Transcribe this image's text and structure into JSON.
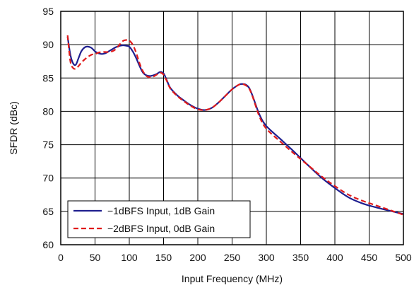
{
  "chart_data": {
    "type": "line",
    "title": "",
    "xlabel": "Input Frequency (MHz)",
    "ylabel": "SFDR (dBc)",
    "xlim": [
      0,
      500
    ],
    "ylim": [
      60,
      95
    ],
    "xticks": [
      0,
      50,
      100,
      150,
      200,
      250,
      300,
      350,
      400,
      450,
      500
    ],
    "yticks": [
      60,
      65,
      70,
      75,
      80,
      85,
      90,
      95
    ],
    "grid": true,
    "legend_position": "bottom-left",
    "series": [
      {
        "name": "−1dBFS Input, 1dB Gain",
        "color": "#1f1f8f",
        "style": "solid",
        "x": [
          10,
          14,
          18,
          22,
          26,
          30,
          35,
          40,
          45,
          50,
          55,
          60,
          65,
          70,
          75,
          80,
          85,
          90,
          95,
          100,
          105,
          110,
          115,
          120,
          125,
          130,
          135,
          140,
          145,
          150,
          155,
          160,
          170,
          180,
          190,
          200,
          210,
          220,
          230,
          240,
          250,
          260,
          265,
          270,
          275,
          280,
          290,
          300,
          320,
          340,
          360,
          380,
          400,
          420,
          440,
          460,
          480,
          500
        ],
        "y": [
          91.2,
          88.5,
          87.2,
          87.0,
          88.0,
          89.0,
          89.6,
          89.7,
          89.5,
          89.0,
          88.7,
          88.6,
          88.7,
          89.0,
          89.3,
          89.6,
          89.8,
          89.9,
          89.85,
          89.7,
          89.0,
          88.0,
          86.8,
          85.8,
          85.4,
          85.3,
          85.4,
          85.6,
          85.9,
          85.7,
          84.6,
          83.5,
          82.4,
          81.6,
          80.9,
          80.4,
          80.2,
          80.5,
          81.3,
          82.3,
          83.3,
          84.0,
          84.1,
          84.0,
          83.5,
          82.3,
          79.5,
          77.8,
          75.9,
          74.0,
          72.0,
          70.1,
          68.5,
          67.1,
          66.2,
          65.6,
          65.1,
          64.6
        ]
      },
      {
        "name": "−2dBFS Input, 0dB Gain",
        "color": "#e01a1a",
        "style": "dashed",
        "x": [
          10,
          14,
          18,
          22,
          26,
          30,
          35,
          40,
          45,
          50,
          55,
          60,
          65,
          70,
          75,
          80,
          85,
          90,
          95,
          100,
          105,
          110,
          115,
          120,
          125,
          130,
          135,
          140,
          145,
          150,
          155,
          160,
          170,
          180,
          190,
          200,
          210,
          220,
          230,
          240,
          250,
          260,
          265,
          270,
          275,
          280,
          290,
          300,
          320,
          340,
          360,
          380,
          400,
          420,
          440,
          460,
          480,
          500
        ],
        "y": [
          91.4,
          87.5,
          86.5,
          86.4,
          86.8,
          87.3,
          87.8,
          88.2,
          88.5,
          88.6,
          88.8,
          88.9,
          88.9,
          88.9,
          89.0,
          89.3,
          89.9,
          90.5,
          90.7,
          90.6,
          90.0,
          88.8,
          87.2,
          86.0,
          85.3,
          85.1,
          85.2,
          85.5,
          85.8,
          85.5,
          84.5,
          83.4,
          82.3,
          81.5,
          80.8,
          80.3,
          80.2,
          80.5,
          81.3,
          82.3,
          83.3,
          84.0,
          84.1,
          83.9,
          83.4,
          82.2,
          79.2,
          77.4,
          75.5,
          73.7,
          72.0,
          70.3,
          68.8,
          67.5,
          66.6,
          65.9,
          65.2,
          64.5
        ]
      }
    ]
  }
}
